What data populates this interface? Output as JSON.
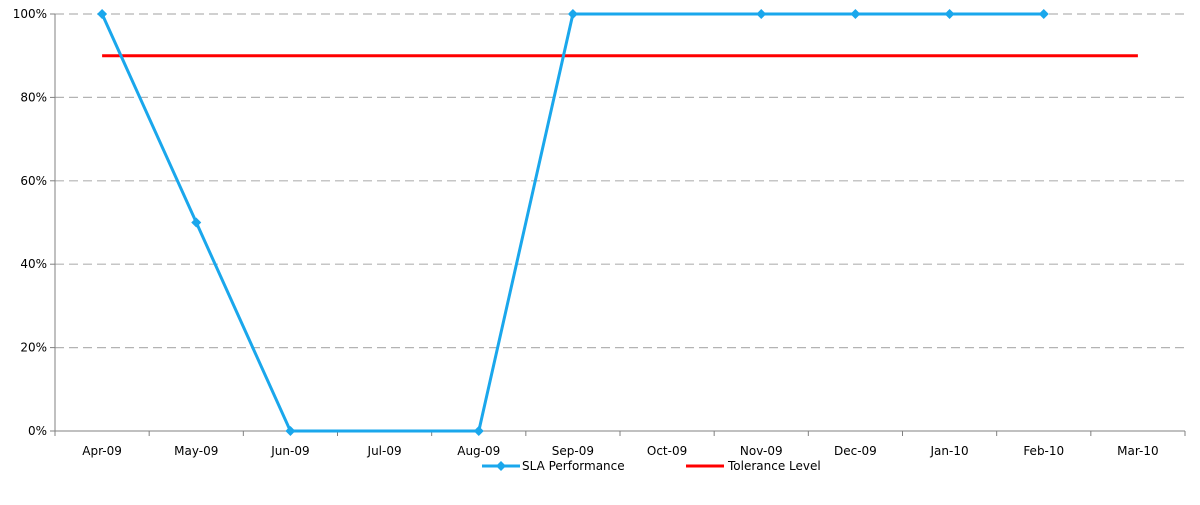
{
  "chart_data": {
    "type": "line",
    "title": "",
    "xlabel": "",
    "ylabel": "",
    "categories": [
      "Apr-09",
      "May-09",
      "Jun-09",
      "Jul-09",
      "Aug-09",
      "Sep-09",
      "Oct-09",
      "Nov-09",
      "Dec-09",
      "Jan-10",
      "Feb-10",
      "Mar-10"
    ],
    "ylim": [
      0,
      100
    ],
    "y_ticks": [
      {
        "value": 0,
        "label": "0%"
      },
      {
        "value": 20,
        "label": "20%"
      },
      {
        "value": 40,
        "label": "40%"
      },
      {
        "value": 60,
        "label": "60%"
      },
      {
        "value": 80,
        "label": "80%"
      },
      {
        "value": 100,
        "label": "100%"
      }
    ],
    "grid": "horizontal-dashed",
    "legend_position": "bottom",
    "series": [
      {
        "name": "SLA Performance",
        "color": "#1aa7ec",
        "marker": "diamond",
        "values": [
          100,
          50,
          0,
          null,
          0,
          100,
          null,
          100,
          100,
          100,
          100,
          null
        ]
      },
      {
        "name": "Tolerance Level",
        "color": "#ff0000",
        "marker": "none",
        "values": [
          90,
          90,
          90,
          90,
          90,
          90,
          90,
          90,
          90,
          90,
          90,
          90
        ]
      }
    ]
  }
}
